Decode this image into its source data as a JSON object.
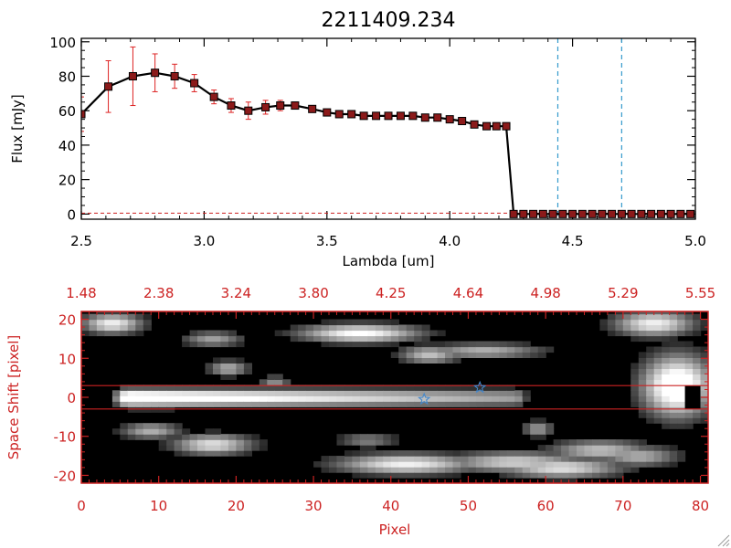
{
  "colors": {
    "axis_top": "#000000",
    "accent_red": "#cc2222",
    "marker": "#8b1a1a",
    "errorbar": "#dd2222",
    "dashed": "#3399cc",
    "image_bg": "#000000",
    "star": "#4488cc"
  },
  "chart_data": [
    {
      "type": "line",
      "title": "2211409.234",
      "xlabel": "Lambda [um]",
      "ylabel": "Flux [mJy]",
      "xlim": [
        2.5,
        5.0
      ],
      "ylim": [
        -3,
        102
      ],
      "xtick_labels": [
        "2.5",
        "3.0",
        "3.5",
        "4.0",
        "4.5",
        "5.0"
      ],
      "ytick_labels": [
        "0",
        "20",
        "40",
        "60",
        "80",
        "100"
      ],
      "vertical_lines": [
        4.44,
        4.7
      ],
      "baseline": 0.5,
      "series": [
        {
          "name": "flux",
          "x": [
            2.5,
            2.61,
            2.71,
            2.8,
            2.88,
            2.96,
            3.04,
            3.11,
            3.18,
            3.25,
            3.31,
            3.37,
            3.44,
            3.5,
            3.55,
            3.6,
            3.65,
            3.7,
            3.75,
            3.8,
            3.85,
            3.9,
            3.95,
            4.0,
            4.05,
            4.1,
            4.15,
            4.19,
            4.23,
            4.26,
            4.3,
            4.34,
            4.38,
            4.42,
            4.46,
            4.5,
            4.54,
            4.58,
            4.62,
            4.66,
            4.7,
            4.74,
            4.78,
            4.82,
            4.86,
            4.9,
            4.94,
            4.98
          ],
          "values": [
            58,
            74,
            80,
            82,
            80,
            76,
            68,
            63,
            60,
            62,
            63,
            63,
            61,
            59,
            58,
            58,
            57,
            57,
            57,
            57,
            57,
            56,
            56,
            55,
            54,
            52,
            51,
            51,
            51,
            0,
            0,
            0,
            0,
            0,
            0,
            0,
            0,
            0,
            0,
            0,
            0,
            0,
            0,
            0,
            0,
            0,
            0,
            0
          ],
          "errors": [
            10,
            15,
            17,
            11,
            7,
            5,
            4,
            4,
            5,
            4,
            3,
            2,
            2,
            1,
            1,
            1,
            1,
            1,
            1,
            1,
            1,
            1,
            1,
            1,
            1,
            1,
            1,
            1,
            1,
            0,
            0,
            0,
            0,
            0,
            0,
            0,
            0,
            0,
            0,
            0,
            0,
            0,
            0,
            0,
            0,
            0,
            0,
            0
          ]
        }
      ]
    },
    {
      "type": "heatmap",
      "xlabel": "Pixel",
      "ylabel": "Space Shift [pixel]",
      "xlim": [
        0,
        81
      ],
      "ylim": [
        -22,
        22
      ],
      "xtick_labels": [
        "0",
        "10",
        "20",
        "30",
        "40",
        "50",
        "60",
        "70",
        "80"
      ],
      "ytick_labels": [
        "-20",
        "-10",
        "0",
        "10",
        "20"
      ],
      "top_tick_labels": [
        "1.48",
        "2.38",
        "3.24",
        "3.80",
        "4.25",
        "4.64",
        "4.98",
        "5.29",
        "5.55"
      ],
      "aperture_lines": [
        3,
        -3
      ],
      "stars": [
        {
          "x": 44.3,
          "y": -0.5
        },
        {
          "x": 51.5,
          "y": 2.5
        }
      ],
      "blobs": [
        {
          "x": 4,
          "y": 19,
          "sx": 3,
          "sy": 2,
          "b": 0.8
        },
        {
          "x": 9,
          "y": -8.5,
          "sx": 3,
          "sy": 1.6,
          "b": 0.6
        },
        {
          "x": 17,
          "y": -12,
          "sx": 4,
          "sy": 2,
          "b": 0.75
        },
        {
          "x": 17,
          "y": 15,
          "sx": 3,
          "sy": 1.5,
          "b": 0.55
        },
        {
          "x": 19,
          "y": 7.5,
          "sx": 2,
          "sy": 1.5,
          "b": 0.6
        },
        {
          "x": 25,
          "y": 4,
          "sx": 1.5,
          "sy": 1.2,
          "b": 0.5
        },
        {
          "x": 36,
          "y": 16.5,
          "sx": 6,
          "sy": 1.8,
          "b": 0.85
        },
        {
          "x": 37,
          "y": -11,
          "sx": 3,
          "sy": 1.5,
          "b": 0.45
        },
        {
          "x": 42,
          "y": -17,
          "sx": 7,
          "sy": 2,
          "b": 0.8
        },
        {
          "x": 45,
          "y": 11,
          "sx": 3,
          "sy": 1.8,
          "b": 0.65
        },
        {
          "x": 52,
          "y": 12,
          "sx": 6,
          "sy": 1.5,
          "b": 0.6
        },
        {
          "x": 56,
          "y": -16.5,
          "sx": 7,
          "sy": 2,
          "b": 0.7
        },
        {
          "x": 59,
          "y": -8,
          "sx": 1.5,
          "sy": 1.5,
          "b": 0.55
        },
        {
          "x": 62,
          "y": -18,
          "sx": 6,
          "sy": 2,
          "b": 0.75
        },
        {
          "x": 67,
          "y": -13.5,
          "sx": 5,
          "sy": 2,
          "b": 0.65
        },
        {
          "x": 72,
          "y": -15,
          "sx": 4,
          "sy": 2,
          "b": 0.6
        },
        {
          "x": 74,
          "y": 19,
          "sx": 4,
          "sy": 2.5,
          "b": 0.8
        },
        {
          "x": 77,
          "y": 3,
          "sx": 3.5,
          "sy": 6,
          "b": 1.0
        }
      ],
      "streak": {
        "x0": 6,
        "x1": 56,
        "y": 0,
        "sy": 1.7,
        "b_start": 1.0,
        "b_end": 0.55
      },
      "hot_spot": {
        "x": 79,
        "y": 0,
        "w": 2,
        "h": 3
      }
    }
  ]
}
